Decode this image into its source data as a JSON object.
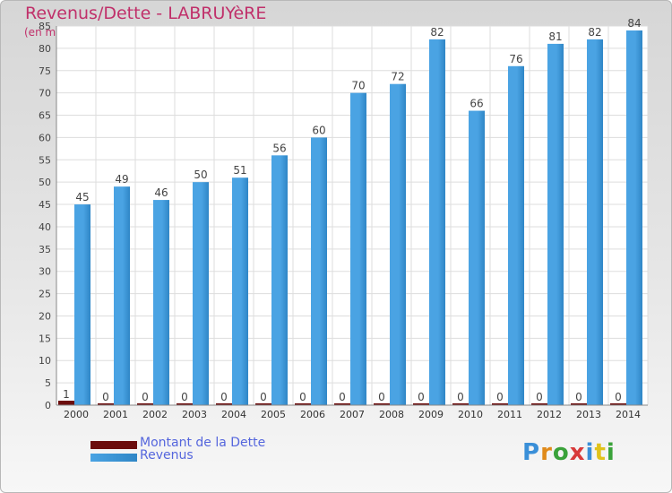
{
  "title": "Revenus/Dette - LABRUYèRE",
  "subtitle": "(en milliers d'€)",
  "brand": "Proxiti",
  "colors": {
    "debt": "#6b0d0d",
    "revenue": "#4aa3e3",
    "revenue_dark": "#2f86c6",
    "title": "#c0306a",
    "legend_text": "#5566dd"
  },
  "chart_data": {
    "type": "bar",
    "categories": [
      "2000",
      "2001",
      "2002",
      "2003",
      "2004",
      "2005",
      "2006",
      "2007",
      "2008",
      "2009",
      "2010",
      "2011",
      "2012",
      "2013",
      "2014"
    ],
    "series": [
      {
        "name": "Montant de la Dette",
        "values": [
          1,
          0,
          0,
          0,
          0,
          0,
          0,
          0,
          0,
          0,
          0,
          0,
          0,
          0,
          0
        ]
      },
      {
        "name": "Revenus",
        "values": [
          45,
          49,
          46,
          50,
          51,
          56,
          60,
          70,
          72,
          82,
          66,
          76,
          81,
          82,
          84
        ]
      }
    ],
    "ylim": [
      0,
      85
    ],
    "yticks": [
      0,
      5,
      10,
      15,
      20,
      25,
      30,
      35,
      40,
      45,
      50,
      55,
      60,
      65,
      70,
      75,
      80,
      85
    ],
    "grid": true,
    "legend": "bottom-left"
  }
}
